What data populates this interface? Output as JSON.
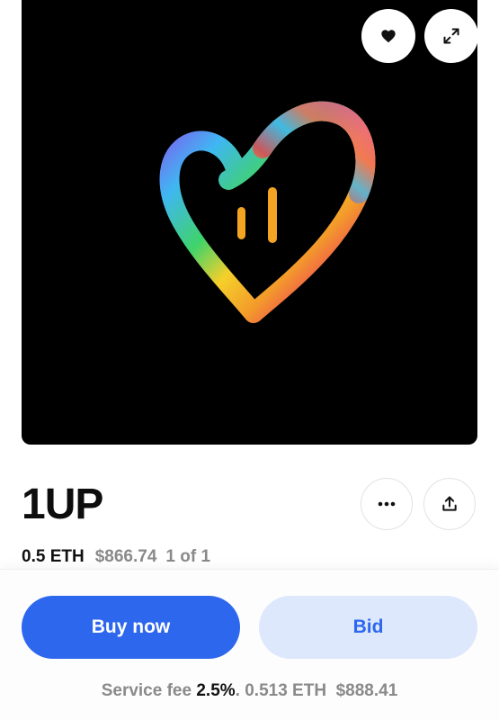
{
  "artwork": {
    "description_icon": "rainbow-heart-icon"
  },
  "controls": {
    "favorite_icon": "heart-icon",
    "expand_icon": "expand-arrows-icon",
    "more_icon": "ellipsis-icon",
    "share_icon": "share-upload-icon"
  },
  "item": {
    "title": "1UP",
    "price_eth": "0.5 ETH",
    "price_usd": "$866.74",
    "edition": "1 of 1"
  },
  "actions": {
    "buy_label": "Buy now",
    "bid_label": "Bid"
  },
  "fee": {
    "label": "Service fee",
    "percent": "2.5%",
    "separator": ".",
    "total_eth": "0.513 ETH",
    "total_usd": "$888.41"
  },
  "colors": {
    "accent": "#2d67ee",
    "accent_light": "#dde8fc",
    "muted": "#8a8a8a"
  }
}
